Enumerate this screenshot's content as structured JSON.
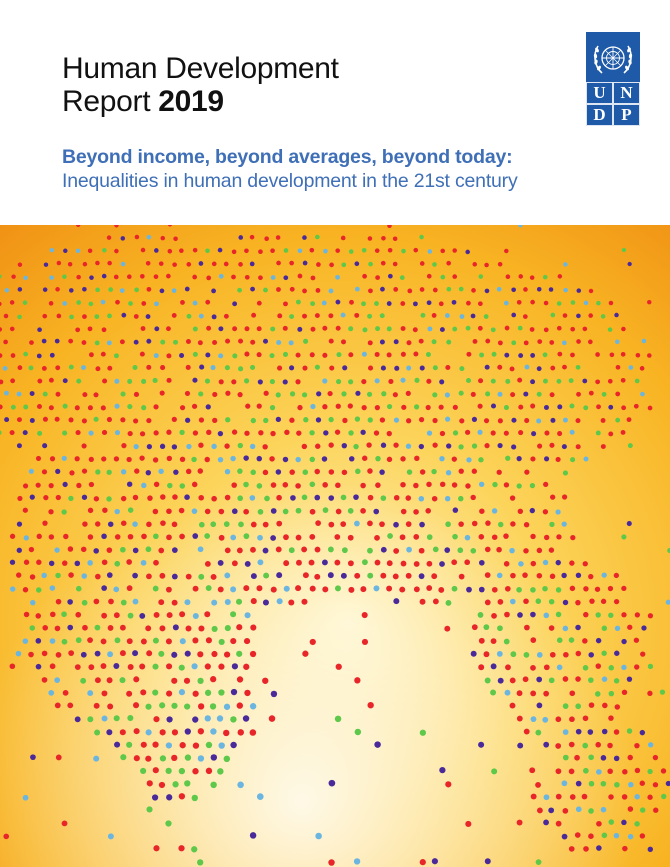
{
  "cover": {
    "title_line1": "Human Development",
    "title_line2_prefix": "Report ",
    "title_year": "2019",
    "subtitle_bold": "Beyond income, beyond averages, beyond today:",
    "subtitle_light": "Inequalities in human development in the 21st century"
  },
  "logo": {
    "letters": [
      "U",
      "N",
      "D",
      "P"
    ],
    "brand_color": "#1e5aa8",
    "icon": "un-emblem-icon"
  },
  "artwork": {
    "icon": "dotted-globe-icon",
    "dot_colors": [
      "#e8262a",
      "#5dc84a",
      "#4a2a9a",
      "#6bb6e0"
    ],
    "background_colors": [
      "#f7b21e",
      "#fbd65a",
      "#f08a14"
    ]
  }
}
